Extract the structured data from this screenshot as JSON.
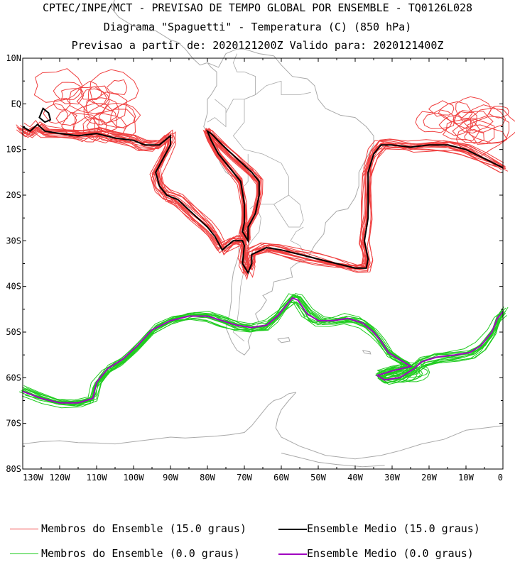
{
  "header": {
    "line1": "CPTEC/INPE/MCT - PREVISAO DE TEMPO GLOBAL POR ENSEMBLE - TQ0126L028",
    "line2": "Diagrama \"Spaguetti\" - Temperatura (C) (850 hPa)",
    "line3": "Previsao a partir de: 2020121200Z  Valido para: 2020121400Z"
  },
  "map": {
    "lat_labels": [
      "10N",
      "EQ",
      "10S",
      "20S",
      "30S",
      "40S",
      "50S",
      "60S",
      "70S",
      "80S"
    ],
    "lon_labels": [
      "130W",
      "120W",
      "110W",
      "100W",
      "90W",
      "80W",
      "70W",
      "60W",
      "50W",
      "40W",
      "30W",
      "20W",
      "10W",
      "0"
    ],
    "lat_range": [
      -80,
      10
    ],
    "lon_range": [
      -130,
      0
    ],
    "colors": {
      "members_15": "#f04040",
      "mean_15": "#000000",
      "members_0": "#20cc20",
      "mean_0": "#a000c0",
      "coast": "#a9a9a9"
    }
  },
  "legend": {
    "members_15": "Membros do Ensemble (15.0 graus)",
    "mean_15": "Ensemble Medio (15.0 graus)",
    "members_0": "Membros do Ensemble (0.0 graus)",
    "mean_0": "Ensemble Medio (0.0 graus)"
  }
}
